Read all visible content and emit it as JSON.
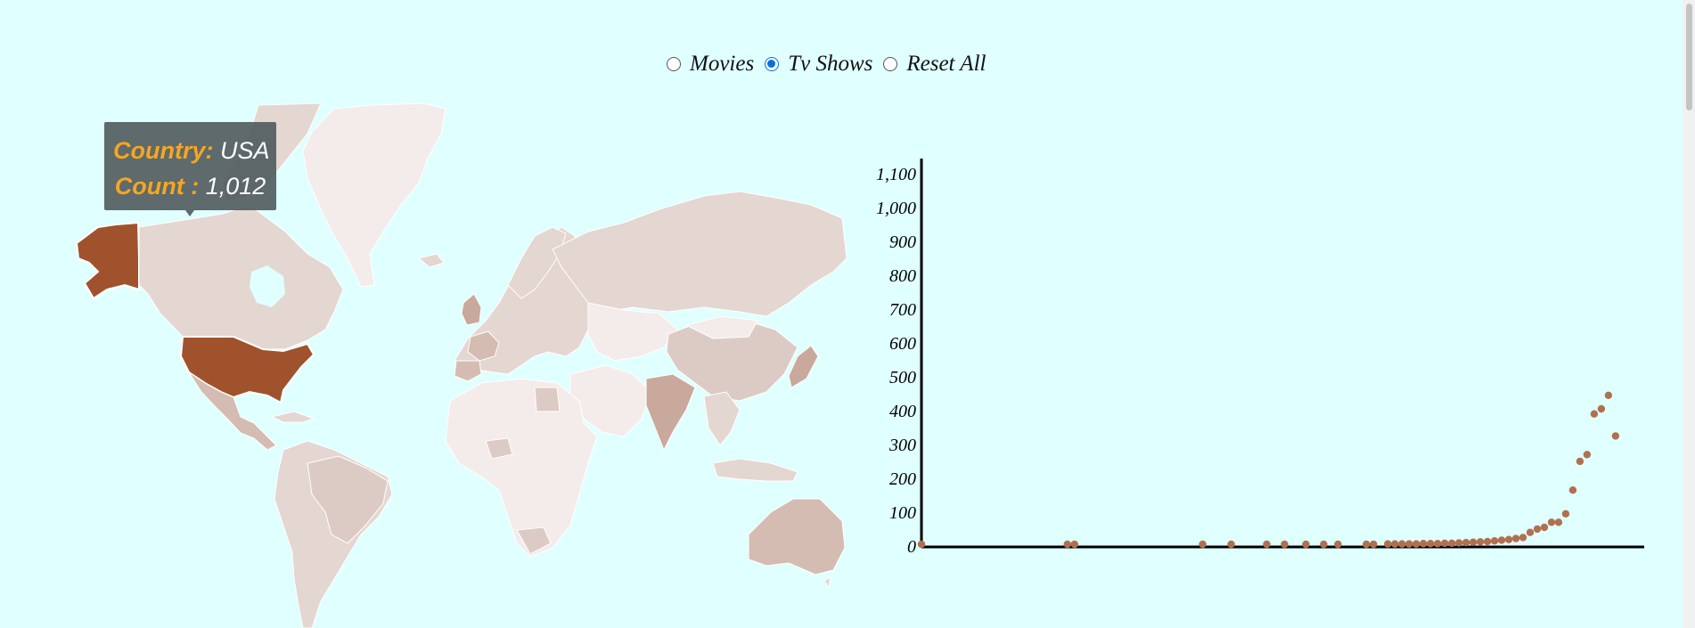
{
  "controls": {
    "options": [
      {
        "label": "Movies",
        "checked": false
      },
      {
        "label": "Tv Shows",
        "checked": true
      },
      {
        "label": "Reset All",
        "checked": false
      }
    ]
  },
  "tooltip": {
    "country_key": "Country:",
    "country_value": "USA",
    "count_key": "Count :",
    "count_value": "1,012"
  },
  "colors": {
    "background": "#e0ffff",
    "highlight_country": "#a0522d",
    "scatter_point": "#b07050",
    "axis": "#000000"
  },
  "chart_data": {
    "type": "scatter",
    "title": "",
    "xlabel": "",
    "ylabel": "",
    "ylim": [
      0,
      1150
    ],
    "yticks": [
      "0",
      "100",
      "200",
      "300",
      "400",
      "500",
      "600",
      "700",
      "800",
      "900",
      "1,000",
      "1,100"
    ],
    "x_axis_labels": false,
    "points": [
      {
        "x": 0,
        "y": 0
      },
      {
        "x": 20.5,
        "y": 0
      },
      {
        "x": 21.5,
        "y": 0
      },
      {
        "x": 39.5,
        "y": 0
      },
      {
        "x": 43.5,
        "y": 0
      },
      {
        "x": 48.5,
        "y": 0
      },
      {
        "x": 51,
        "y": 0
      },
      {
        "x": 54,
        "y": 0
      },
      {
        "x": 56.5,
        "y": 0
      },
      {
        "x": 58.5,
        "y": 0
      },
      {
        "x": 62.5,
        "y": 0
      },
      {
        "x": 63.5,
        "y": 0
      },
      {
        "x": 65.5,
        "y": 1
      },
      {
        "x": 66.5,
        "y": 1
      },
      {
        "x": 67.5,
        "y": 1
      },
      {
        "x": 68.5,
        "y": 1
      },
      {
        "x": 69.5,
        "y": 1
      },
      {
        "x": 70.5,
        "y": 2
      },
      {
        "x": 71.5,
        "y": 2
      },
      {
        "x": 72.5,
        "y": 2
      },
      {
        "x": 73.5,
        "y": 3
      },
      {
        "x": 74.5,
        "y": 3
      },
      {
        "x": 75.5,
        "y": 4
      },
      {
        "x": 76.5,
        "y": 5
      },
      {
        "x": 77.5,
        "y": 6
      },
      {
        "x": 78.5,
        "y": 7
      },
      {
        "x": 79.5,
        "y": 8
      },
      {
        "x": 80.5,
        "y": 10
      },
      {
        "x": 81.5,
        "y": 12
      },
      {
        "x": 82.5,
        "y": 14
      },
      {
        "x": 83.5,
        "y": 17
      },
      {
        "x": 84.5,
        "y": 20
      },
      {
        "x": 85.5,
        "y": 35
      },
      {
        "x": 86.5,
        "y": 45
      },
      {
        "x": 87.5,
        "y": 50
      },
      {
        "x": 88.5,
        "y": 65
      },
      {
        "x": 89.5,
        "y": 65
      },
      {
        "x": 90.5,
        "y": 90
      },
      {
        "x": 91.5,
        "y": 160
      },
      {
        "x": 92.5,
        "y": 245
      },
      {
        "x": 93.5,
        "y": 265
      },
      {
        "x": 94.5,
        "y": 385
      },
      {
        "x": 95.5,
        "y": 400
      },
      {
        "x": 96.5,
        "y": 440
      },
      {
        "x": 97.5,
        "y": 320
      }
    ]
  }
}
